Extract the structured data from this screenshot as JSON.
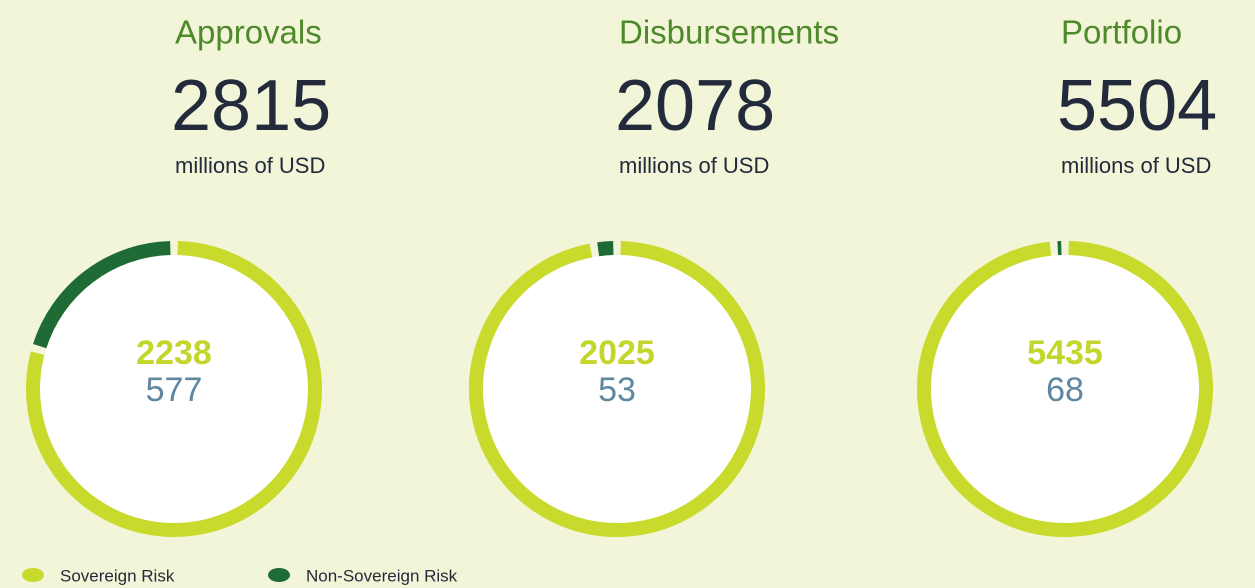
{
  "chart_data": [
    {
      "type": "donut",
      "title": "Approvals",
      "total": 2815,
      "subtitle": "millions of USD",
      "values": [
        2238,
        577
      ]
    },
    {
      "type": "donut",
      "title": "Disbursements",
      "total": 2078,
      "subtitle": "millions of USD",
      "values": [
        2025,
        53
      ]
    },
    {
      "type": "donut",
      "title": "Portfolio",
      "total": 5504,
      "subtitle": "millions of USD",
      "values": [
        5435,
        68
      ]
    }
  ],
  "legend": [
    {
      "name": "Sovereign Risk",
      "color": "#c8da2b"
    },
    {
      "name": "Non-Sovereign Risk",
      "color": "#1e6b35"
    }
  ],
  "value_colors": [
    "#c3d62c",
    "#5f879f"
  ]
}
